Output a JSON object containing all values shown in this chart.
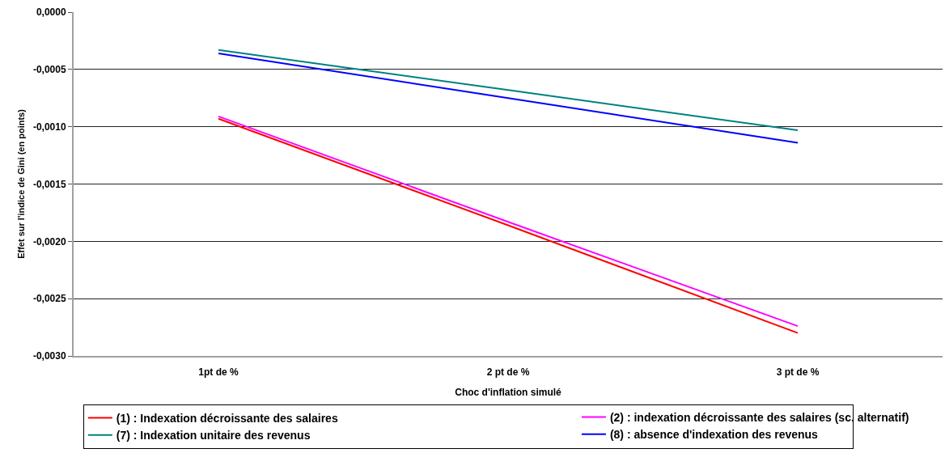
{
  "chart_data": {
    "type": "line",
    "xlabel": "Choc d'inflation simulé",
    "ylabel": "Effet sur l'indice de Gini (en points)",
    "categories": [
      "1pt de %",
      "2 pt de %",
      "3 pt de %"
    ],
    "series": [
      {
        "name": "(1) : Indexation décroissante des salaires",
        "color": "#ff0000",
        "values": [
          -0.00093,
          -0.00186,
          -0.0028
        ]
      },
      {
        "name": "(2) : indexation décroissante des salaires (sc. alternatif)",
        "color": "#ff00ff",
        "values": [
          -0.00091,
          -0.00183,
          -0.00274
        ]
      },
      {
        "name": "(7) : Indexation unitaire des revenus",
        "color": "#008080",
        "values": [
          -0.00033,
          -0.00068,
          -0.00103
        ]
      },
      {
        "name": "(8) : absence d'indexation des revenus",
        "color": "#0000ff",
        "values": [
          -0.00036,
          -0.00075,
          -0.00114
        ]
      }
    ],
    "ylim": [
      -0.003,
      0
    ],
    "yticks": [
      {
        "value": -0.003,
        "label": "-0,0030"
      },
      {
        "value": -0.0025,
        "label": "-0,0025"
      },
      {
        "value": -0.002,
        "label": "-0,0020"
      },
      {
        "value": -0.0015,
        "label": "-0,0015"
      },
      {
        "value": -0.001,
        "label": "-0,0010"
      },
      {
        "value": -0.0005,
        "label": "-0,0005"
      },
      {
        "value": 0,
        "label": "0,0000"
      }
    ],
    "grid": "y",
    "legend": "bottom",
    "marker": "none",
    "line_style": "solid"
  }
}
